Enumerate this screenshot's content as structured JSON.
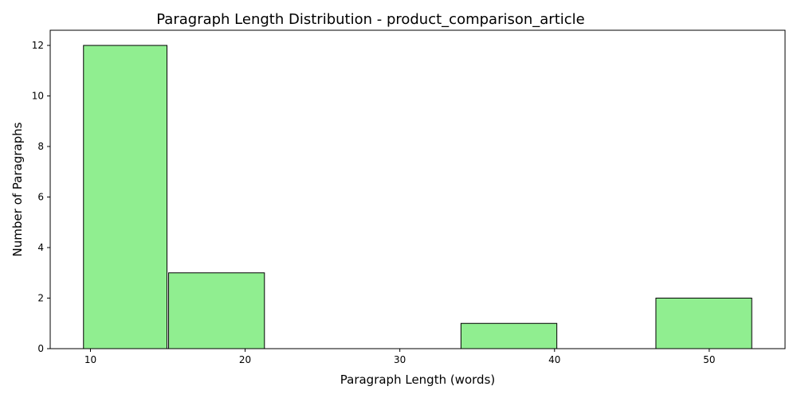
{
  "chart_data": {
    "type": "bar",
    "title": "Paragraph Length Distribution - product_comparison_article",
    "xlabel": "Paragraph Length (words)",
    "ylabel": "Number of Paragraphs",
    "bins": [
      {
        "start": 9.5,
        "end": 15.0,
        "count": 12
      },
      {
        "start": 15.0,
        "end": 21.3,
        "count": 3
      },
      {
        "start": 21.3,
        "end": 27.6,
        "count": 0
      },
      {
        "start": 27.6,
        "end": 33.9,
        "count": 0
      },
      {
        "start": 33.9,
        "end": 40.2,
        "count": 1
      },
      {
        "start": 40.2,
        "end": 46.5,
        "count": 0
      },
      {
        "start": 46.5,
        "end": 52.8,
        "count": 2
      }
    ],
    "xlim": [
      7.4,
      54.9
    ],
    "ylim": [
      0,
      12.6
    ],
    "x_ticks": [
      "10",
      "20",
      "30",
      "40",
      "50"
    ],
    "y_ticks": [
      "0",
      "2",
      "4",
      "6",
      "8",
      "10",
      "12"
    ],
    "bar_color": "#90ee90",
    "edge_color": "#000000",
    "grid": false
  }
}
